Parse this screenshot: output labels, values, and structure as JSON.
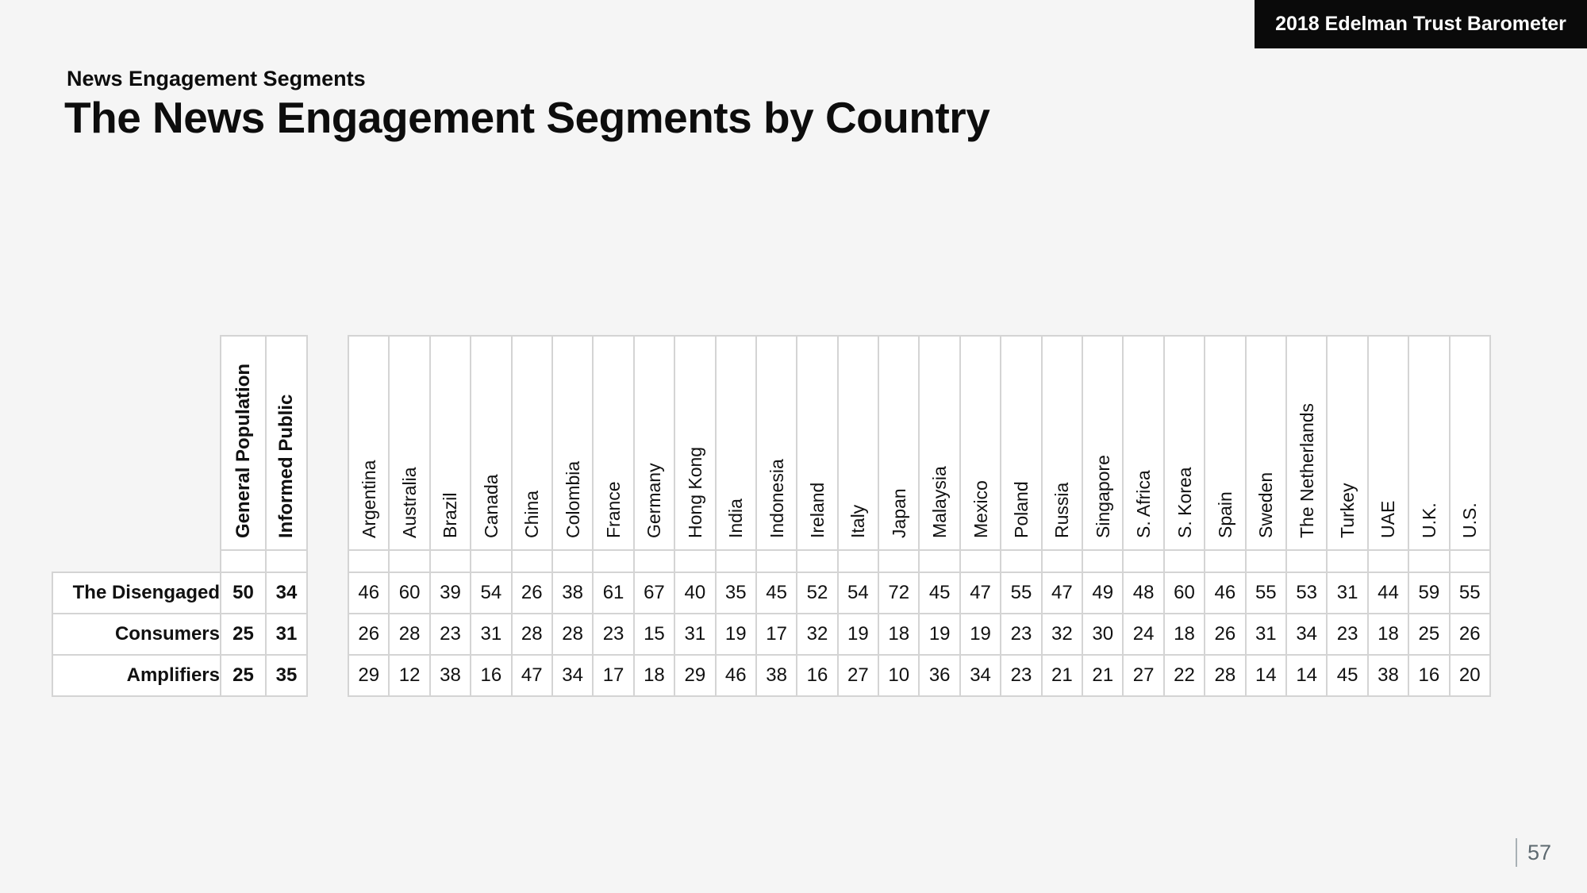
{
  "badge": {
    "label": "2018 Edelman Trust Barometer"
  },
  "header": {
    "kicker": "News Engagement Segments",
    "title": "The News Engagement Segments by Country"
  },
  "footer": {
    "page_number": "57"
  },
  "colors": {
    "background": "#f5f5f5",
    "cell": "#ffffff",
    "border": "#d4d4d4",
    "badge_bg": "#0a0a0a",
    "badge_text": "#ffffff",
    "text": "#111111",
    "page_number": "#5d6970"
  },
  "chart_data": {
    "type": "table",
    "title": "The News Engagement Segments by Country",
    "column_groups": [
      "General Population",
      "Informed Public"
    ],
    "countries": [
      "Argentina",
      "Australia",
      "Brazil",
      "Canada",
      "China",
      "Colombia",
      "France",
      "Germany",
      "Hong Kong",
      "India",
      "Indonesia",
      "Ireland",
      "Italy",
      "Japan",
      "Malaysia",
      "Mexico",
      "Poland",
      "Russia",
      "Singapore",
      "S. Africa",
      "S. Korea",
      "Spain",
      "Sweden",
      "The Netherlands",
      "Turkey",
      "UAE",
      "U.K.",
      "U.S."
    ],
    "rows": [
      {
        "label": "The Disengaged",
        "general_population": 50,
        "informed_public": 34,
        "values": [
          46,
          60,
          39,
          54,
          26,
          38,
          61,
          67,
          40,
          35,
          45,
          52,
          54,
          72,
          45,
          47,
          55,
          47,
          49,
          48,
          60,
          46,
          55,
          53,
          31,
          44,
          59,
          55
        ]
      },
      {
        "label": "Consumers",
        "general_population": 25,
        "informed_public": 31,
        "values": [
          26,
          28,
          23,
          31,
          28,
          28,
          23,
          15,
          31,
          19,
          17,
          32,
          19,
          18,
          19,
          19,
          23,
          32,
          30,
          24,
          18,
          26,
          31,
          34,
          23,
          18,
          25,
          26
        ]
      },
      {
        "label": "Amplifiers",
        "general_population": 25,
        "informed_public": 35,
        "values": [
          29,
          12,
          38,
          16,
          47,
          34,
          17,
          18,
          29,
          46,
          38,
          16,
          27,
          10,
          36,
          34,
          23,
          21,
          21,
          27,
          22,
          28,
          14,
          14,
          45,
          38,
          16,
          20
        ]
      }
    ]
  }
}
